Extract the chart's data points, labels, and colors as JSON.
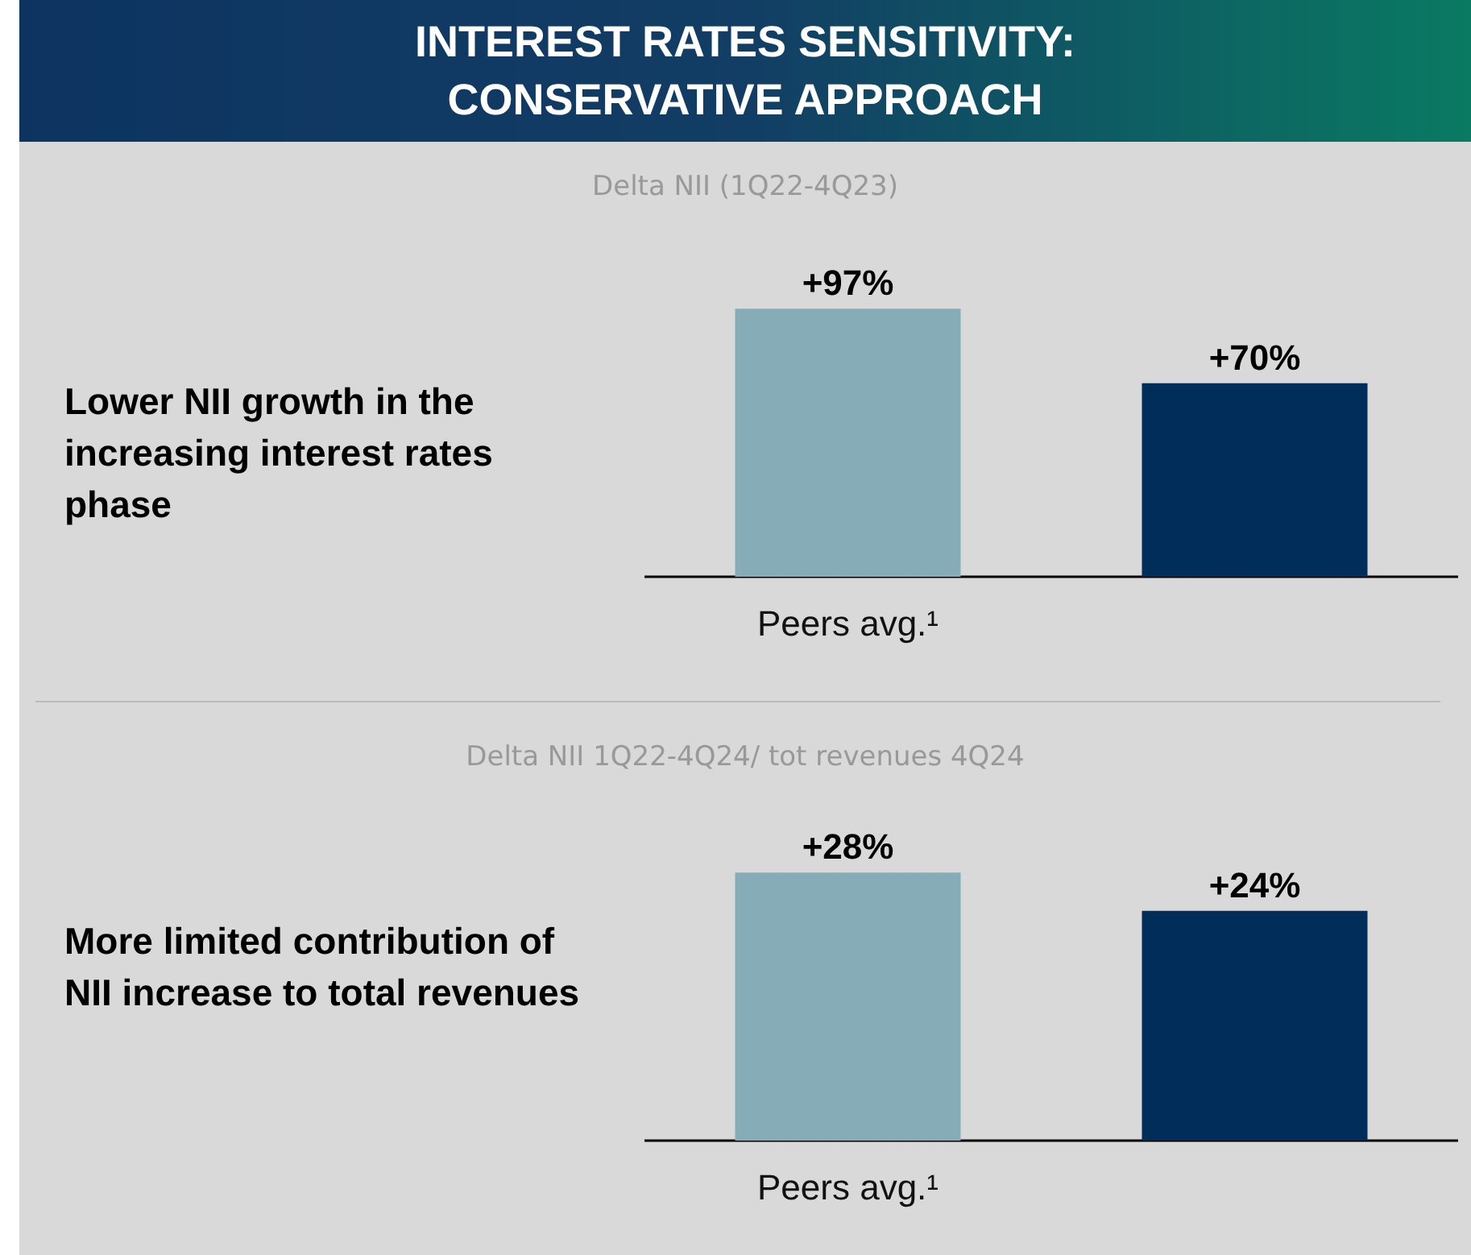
{
  "chart_data": [
    {
      "type": "bar",
      "title": "INTEREST RATES SENSITIVITY:\nCONSERVATIVE APPROACH",
      "subtitle": "Delta NII (1Q22-4Q23)",
      "annotations": [
        "Lower NII growth in the increasing interest rates phase"
      ],
      "categories": [
        "Peers avg.¹",
        null
      ],
      "values": [
        97,
        70
      ],
      "colors": [
        "#86adb7",
        "#002d5a"
      ],
      "value_labels": [
        "+97%",
        "+70%"
      ]
    },
    {
      "type": "bar",
      "subtitle": "Delta NII 1Q22-4Q24/ tot revenues 4Q24",
      "annotations": [
        "More limited contribution of NII increase to total revenues"
      ],
      "categories": [
        "Peers avg.¹",
        null
      ],
      "values": [
        28,
        24
      ],
      "colors": [
        "#86adb7",
        "#002d5a"
      ],
      "value_labels": [
        "+28%",
        "+24%"
      ]
    }
  ]
}
